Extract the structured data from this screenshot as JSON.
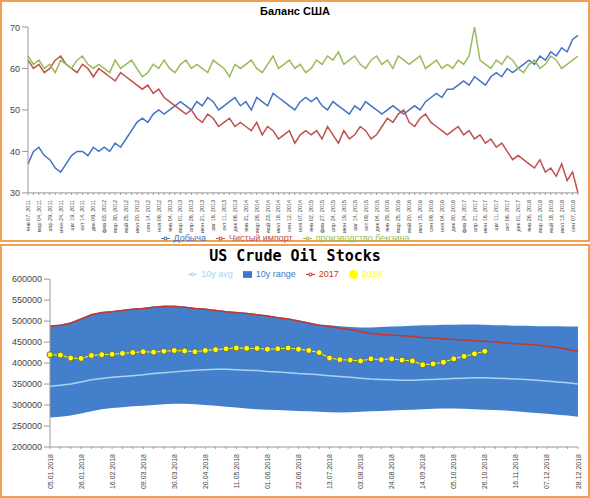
{
  "chart_data": [
    {
      "type": "line",
      "title": "Баланс США",
      "categories": [
        "янв 07, 2011",
        null,
        "мар 04, 2011",
        null,
        "апр 29, 2011",
        null,
        "июн 24, 2011",
        null,
        "авг 19, 2011",
        null,
        "окт 14, 2011",
        null,
        "дек 09, 2011",
        null,
        "фев 03, 2012",
        null,
        "мар 30, 2012",
        null,
        "май 25, 2012",
        null,
        "июл 20, 2012",
        null,
        "сен 14, 2012",
        null,
        "ноя 09, 2012",
        null,
        "янв 04, 2013",
        null,
        "мар 01, 2013",
        null,
        "апр 26, 2013",
        null,
        "июн 21, 2013",
        null,
        "авг 16, 2013",
        null,
        "окт 11, 2013",
        null,
        "дек 06, 2013",
        null,
        "янв 31, 2014",
        null,
        "мар 28, 2014",
        null,
        "май 23, 2014",
        null,
        "июл 18, 2014",
        null,
        "сен 12, 2014",
        null,
        "ноя 07, 2014",
        null,
        "янв 02, 2015",
        null,
        "фев 27, 2015",
        null,
        "апр 24, 2015",
        null,
        "июн 19, 2015",
        null,
        "авг 14, 2015",
        null,
        "окт 09, 2015",
        null,
        "дек 04, 2015",
        null,
        "янв 29, 2016",
        null,
        "мар 25, 2016",
        null,
        "май 20, 2016",
        null,
        "июл 15, 2016",
        null,
        "сен 09, 2016",
        null,
        "ноя 04, 2016",
        null,
        "дек 30, 2016",
        null,
        "фев 24, 2017",
        null,
        "апр 21, 2017",
        null,
        "июн 16, 2017",
        null,
        "авг 11, 2017",
        null,
        "окт 06, 2017",
        null,
        "дек 01, 2017",
        null,
        "янв 26, 2018",
        null,
        "мар 23, 2018",
        null,
        "май 18, 2018",
        null,
        "июл 13, 2018",
        null,
        "сен 07, 2018",
        null
      ],
      "series": [
        {
          "name": "Добыча",
          "color": "#4472c4",
          "values": [
            37,
            40,
            41,
            39,
            38,
            36,
            35,
            37,
            39,
            40,
            40,
            39,
            41,
            40,
            41,
            40,
            42,
            41,
            43,
            45,
            47,
            48,
            47,
            49,
            50,
            49,
            50,
            51,
            52,
            51,
            50,
            52,
            51,
            53,
            52,
            50,
            51,
            52,
            53,
            51,
            52,
            50,
            53,
            52,
            51,
            54,
            53,
            52,
            51,
            50,
            52,
            53,
            52,
            53,
            51,
            50,
            52,
            51,
            50,
            49,
            51,
            50,
            52,
            51,
            50,
            49,
            50,
            51,
            50,
            49,
            50,
            51,
            50,
            52,
            53,
            54,
            53,
            55,
            55,
            56,
            57,
            56,
            58,
            57,
            56,
            58,
            59,
            58,
            60,
            59,
            60,
            61,
            62,
            61,
            63,
            62,
            64,
            63,
            65,
            64,
            67,
            68
          ]
        },
        {
          "name": "Чистый импорт",
          "color": "#c0504d",
          "values": [
            62,
            60,
            61,
            59,
            60,
            62,
            63,
            61,
            60,
            59,
            61,
            60,
            58,
            60,
            59,
            58,
            57,
            59,
            58,
            57,
            56,
            55,
            56,
            54,
            55,
            53,
            52,
            51,
            50,
            49,
            50,
            48,
            47,
            49,
            48,
            46,
            47,
            48,
            46,
            47,
            46,
            45,
            47,
            44,
            46,
            45,
            43,
            44,
            45,
            42,
            44,
            45,
            44,
            45,
            43,
            46,
            44,
            42,
            45,
            43,
            44,
            46,
            45,
            43,
            44,
            46,
            48,
            47,
            49,
            50,
            47,
            46,
            48,
            49,
            47,
            46,
            45,
            44,
            45,
            46,
            44,
            45,
            43,
            44,
            42,
            43,
            41,
            42,
            40,
            38,
            39,
            38,
            37,
            36,
            38,
            35,
            36,
            34,
            37,
            33,
            35,
            30
          ]
        },
        {
          "name": "производство бензина",
          "color": "#9bbb59",
          "values": [
            63,
            61,
            62,
            60,
            61,
            59,
            62,
            61,
            60,
            62,
            63,
            61,
            60,
            61,
            60,
            59,
            62,
            60,
            61,
            62,
            60,
            58,
            59,
            61,
            60,
            62,
            60,
            59,
            61,
            62,
            60,
            61,
            60,
            59,
            62,
            61,
            60,
            58,
            61,
            60,
            61,
            62,
            60,
            59,
            61,
            63,
            60,
            61,
            62,
            60,
            61,
            59,
            60,
            62,
            61,
            63,
            62,
            64,
            61,
            62,
            63,
            61,
            60,
            62,
            63,
            61,
            62,
            60,
            63,
            62,
            61,
            62,
            63,
            60,
            61,
            62,
            60,
            61,
            60,
            62,
            61,
            63,
            70,
            62,
            61,
            60,
            62,
            61,
            63,
            62,
            60,
            59,
            61,
            62,
            60,
            61,
            63,
            62,
            60,
            61,
            62,
            63
          ]
        }
      ],
      "ylim": [
        30,
        70
      ],
      "yticks": [
        30,
        40,
        50,
        60,
        70
      ],
      "grid": false,
      "legend": "bottom"
    },
    {
      "type": "line",
      "title": "US Crude Oil Stocks",
      "categories": [
        "05.01.2018",
        null,
        null,
        "26.01.2018",
        null,
        null,
        "16.02.2018",
        null,
        null,
        "09.03.2018",
        null,
        null,
        "30.03.2018",
        null,
        null,
        "20.04.2018",
        null,
        null,
        "11.05.2018",
        null,
        null,
        "01.06.2018",
        null,
        null,
        "22.06.2018",
        null,
        null,
        "13.07.2018",
        null,
        null,
        "03.08.2018",
        null,
        null,
        "24.08.2018",
        null,
        null,
        "14.09.2018",
        null,
        null,
        "05.10.2018",
        null,
        null,
        "26.10.2018",
        null,
        null,
        "16.11.2018",
        null,
        null,
        "07.12.2018",
        null,
        null,
        "28.12.2018"
      ],
      "series": [
        {
          "name": "10y range",
          "type": "area",
          "color": "#3a78c9",
          "values": [
            [
              270000,
              490000
            ],
            [
              272000,
              492000
            ],
            [
              275000,
              497000
            ],
            [
              280000,
              507000
            ],
            [
              285000,
              517000
            ],
            [
              290000,
              522000
            ],
            [
              293000,
              524000
            ],
            [
              295000,
              527000
            ],
            [
              297000,
              530000
            ],
            [
              298000,
              532000
            ],
            [
              300000,
              535000
            ],
            [
              302000,
              537000
            ],
            [
              303000,
              537000
            ],
            [
              303000,
              535000
            ],
            [
              302000,
              532000
            ],
            [
              300000,
              530000
            ],
            [
              298000,
              527000
            ],
            [
              296000,
              524000
            ],
            [
              294000,
              522000
            ],
            [
              292000,
              520000
            ],
            [
              290000,
              517000
            ],
            [
              289000,
              514000
            ],
            [
              288000,
              510000
            ],
            [
              287000,
              507000
            ],
            [
              286000,
              502000
            ],
            [
              285000,
              497000
            ],
            [
              284000,
              492000
            ],
            [
              283000,
              490000
            ],
            [
              282000,
              488000
            ],
            [
              283000,
              486000
            ],
            [
              284000,
              485000
            ],
            [
              285000,
              485000
            ],
            [
              286000,
              486000
            ],
            [
              287000,
              487000
            ],
            [
              288000,
              488000
            ],
            [
              289000,
              489000
            ],
            [
              290000,
              490000
            ],
            [
              291000,
              490000
            ],
            [
              292000,
              491000
            ],
            [
              292000,
              491000
            ],
            [
              291000,
              492000
            ],
            [
              290000,
              492000
            ],
            [
              289000,
              491000
            ],
            [
              288000,
              490000
            ],
            [
              287000,
              490000
            ],
            [
              285000,
              489000
            ],
            [
              283000,
              489000
            ],
            [
              281000,
              488000
            ],
            [
              279000,
              488000
            ],
            [
              277000,
              488000
            ],
            [
              275000,
              487000
            ],
            [
              272000,
              487000
            ]
          ]
        },
        {
          "name": "10y avg",
          "type": "line",
          "color": "#a9d3f0",
          "values": [
            345000,
            347000,
            350000,
            355000,
            360000,
            363000,
            366000,
            368000,
            370000,
            372000,
            375000,
            377000,
            379000,
            381000,
            383000,
            384000,
            385000,
            385000,
            384000,
            383000,
            382000,
            380000,
            379000,
            377000,
            375000,
            374000,
            372000,
            370000,
            368000,
            366000,
            364000,
            362000,
            361000,
            360000,
            359000,
            359000,
            360000,
            361000,
            362000,
            363000,
            364000,
            365000,
            365000,
            364000,
            363000,
            362000,
            361000,
            359000,
            357000,
            355000,
            353000,
            350000
          ]
        },
        {
          "name": "2018",
          "type": "line",
          "color": "#ffff00",
          "marker": "circle",
          "values": [
            420000,
            419000,
            412000,
            411000,
            418000,
            420000,
            421000,
            423000,
            425000,
            427000,
            426000,
            428000,
            430000,
            429000,
            427000,
            430000,
            432000,
            434000,
            436000,
            435000,
            435000,
            433000,
            434000,
            436000,
            433000,
            430000,
            425000,
            412000,
            408000,
            407000,
            405000,
            410000,
            408000,
            410000,
            407000,
            405000,
            396000,
            398000,
            402000,
            410000,
            416000,
            422000,
            428000,
            null,
            null,
            null,
            null,
            null,
            null,
            null,
            null,
            null
          ]
        },
        {
          "name": "2017",
          "type": "line",
          "color": "#c0392b",
          "values": [
            487000,
            490000,
            495000,
            505000,
            515000,
            520000,
            522000,
            525000,
            528000,
            530000,
            533000,
            535000,
            535000,
            533000,
            530000,
            528000,
            525000,
            522000,
            520000,
            518000,
            515000,
            512000,
            508000,
            505000,
            500000,
            495000,
            490000,
            487000,
            483000,
            480000,
            475000,
            470000,
            468000,
            467000,
            465000,
            463000,
            461000,
            460000,
            458000,
            456000,
            455000,
            453000,
            452000,
            450000,
            448000,
            446000,
            445000,
            443000,
            440000,
            437000,
            433000,
            428000
          ]
        }
      ],
      "ylim": [
        200000,
        600000
      ],
      "yticks": [
        200000,
        250000,
        300000,
        350000,
        400000,
        450000,
        500000,
        550000,
        600000
      ],
      "grid": false,
      "legend": "top"
    }
  ]
}
